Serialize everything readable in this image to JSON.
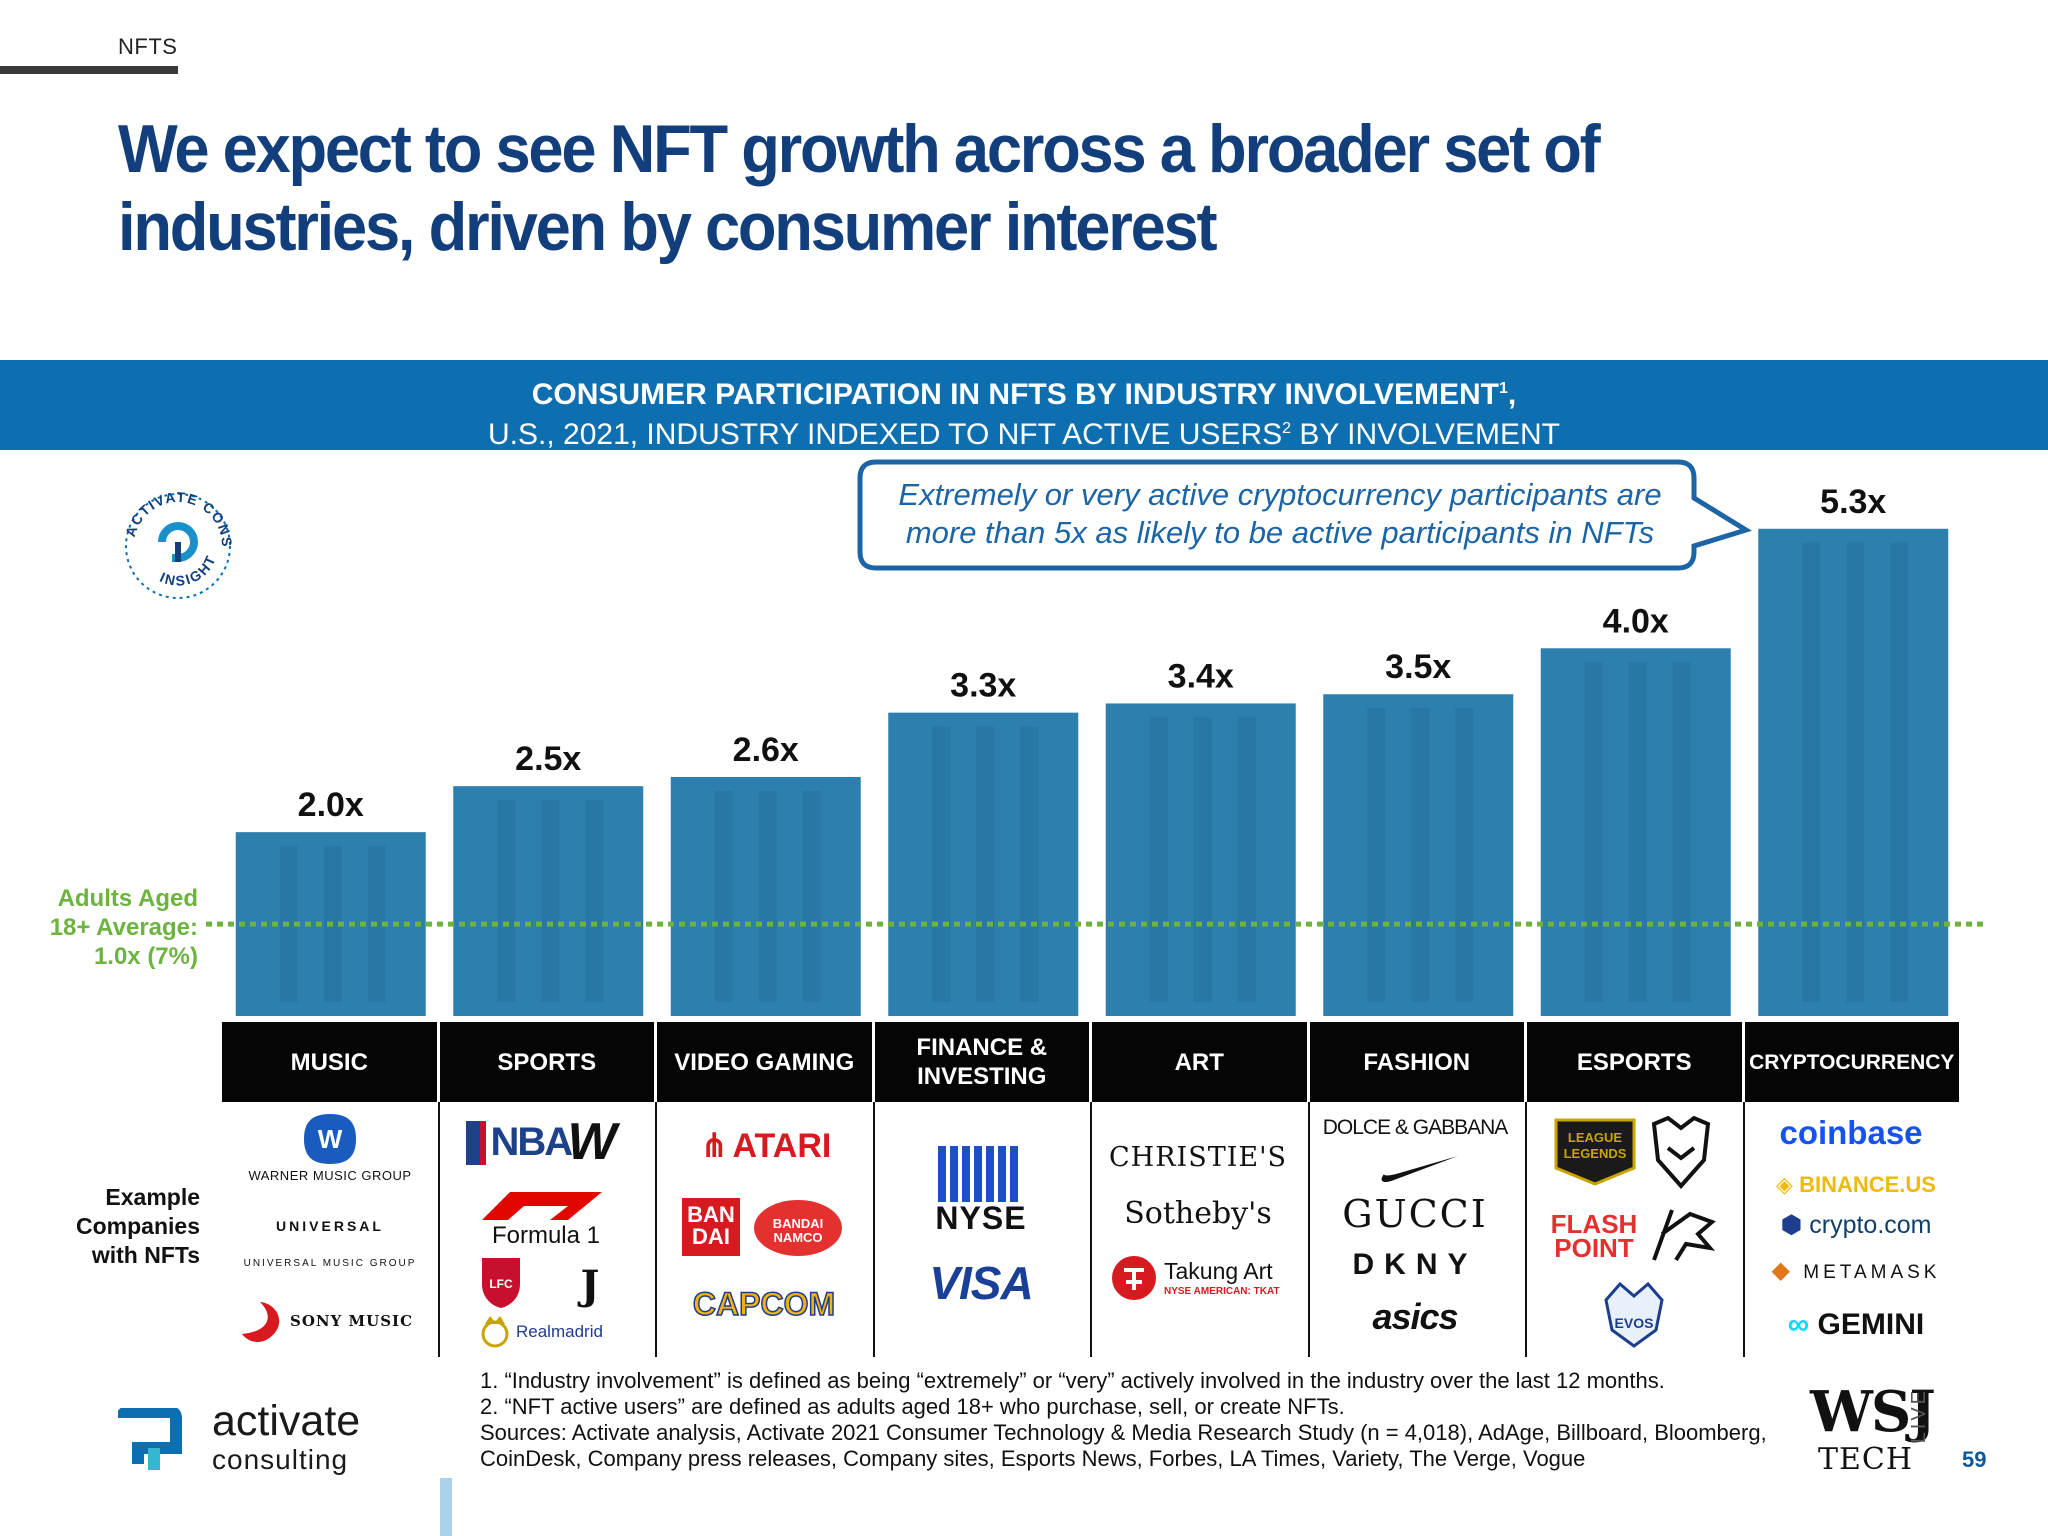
{
  "header": {
    "section_tag": "NFTS",
    "headline": "We expect to see NFT growth across a broader set of industries, driven by consumer interest"
  },
  "banner": {
    "line1": "CONSUMER PARTICIPATION IN NFTS BY INDUSTRY INVOLVEMENT",
    "line1_sup": "1",
    "line1_end": ",",
    "line2_a": "U.S., 2021, INDUSTRY INDEXED TO NFT ACTIVE USERS",
    "line2_sup": "2",
    "line2_b": " BY INVOLVEMENT"
  },
  "badge": {
    "top_text": "ACTIVATE CONSUMER",
    "bottom_text": "INSIGHT"
  },
  "callout": {
    "line1": "Extremely or very active cryptocurrency participants are",
    "line2": "more than 5x as likely to be active participants in NFTs"
  },
  "chart_data": {
    "type": "bar",
    "categories": [
      "MUSIC",
      "SPORTS",
      "VIDEO GAMING",
      "FINANCE &\nINVESTING",
      "ART",
      "FASHION",
      "ESPORTS",
      "CRYPTOCURRENCY"
    ],
    "values": [
      2.0,
      2.5,
      2.6,
      3.3,
      3.4,
      3.5,
      4.0,
      5.3
    ],
    "labels": [
      "2.0x",
      "2.5x",
      "2.6x",
      "3.3x",
      "3.4x",
      "3.5x",
      "4.0x",
      "5.3x"
    ],
    "baseline": {
      "value": 1.0,
      "label_lines": [
        "Adults Aged",
        "18+ Average:",
        "1.0x (7%)"
      ]
    },
    "bar_color": "#2d7fae",
    "baseline_color": "#6cb33f",
    "ylim": [
      0,
      5.7
    ]
  },
  "companies": {
    "label_lines": [
      "Example",
      "Companies",
      "with NFTs"
    ],
    "music": [
      "WARNER MUSIC GROUP",
      "UNIVERSAL",
      "UNIVERSAL MUSIC GROUP",
      "SONY MUSIC"
    ],
    "sports": [
      "NBA",
      "W",
      "Formula 1",
      "LFC",
      "J",
      "Realmadrid"
    ],
    "gaming": [
      "ATARI",
      "BAN DAI",
      "BANDAI NAMCO",
      "CAPCOM"
    ],
    "finance": [
      "NYSE",
      "VISA"
    ],
    "art": [
      "CHRISTIE'S",
      "Sotheby's",
      "Takung Art",
      "NYSE AMERICAN: TKAT"
    ],
    "fashion": [
      "DOLCE & GABBANA",
      "GUCCI",
      "DKNY",
      "asics"
    ],
    "esports": [
      "LEAGUE LEGENDS",
      "FLASH POINT",
      "EVOS"
    ],
    "crypto": [
      "coinbase",
      "BINANCE.US",
      "crypto.com",
      "METAMASK",
      "GEMINI"
    ]
  },
  "footnotes": {
    "note1": "1. “Industry involvement” is defined as being “extremely” or “very” actively involved in the industry over the last 12 months.",
    "note2": "2. “NFT active users” are defined as adults aged 18+ who purchase, sell, or create NFTs.",
    "sources": "Sources: Activate analysis, Activate 2021 Consumer Technology & Media Research Study (n = 4,018), AdAge, Billboard, Bloomberg, CoinDesk, Company press releases, Company sites, Esports News, Forbes, LA Times, Variety, The Verge, Vogue"
  },
  "brand": {
    "name": "activate",
    "sub": "consulting"
  },
  "wsj": {
    "mark": "WSJ",
    "tech": "TECH",
    "live": "LIVE"
  },
  "page_number": "59"
}
